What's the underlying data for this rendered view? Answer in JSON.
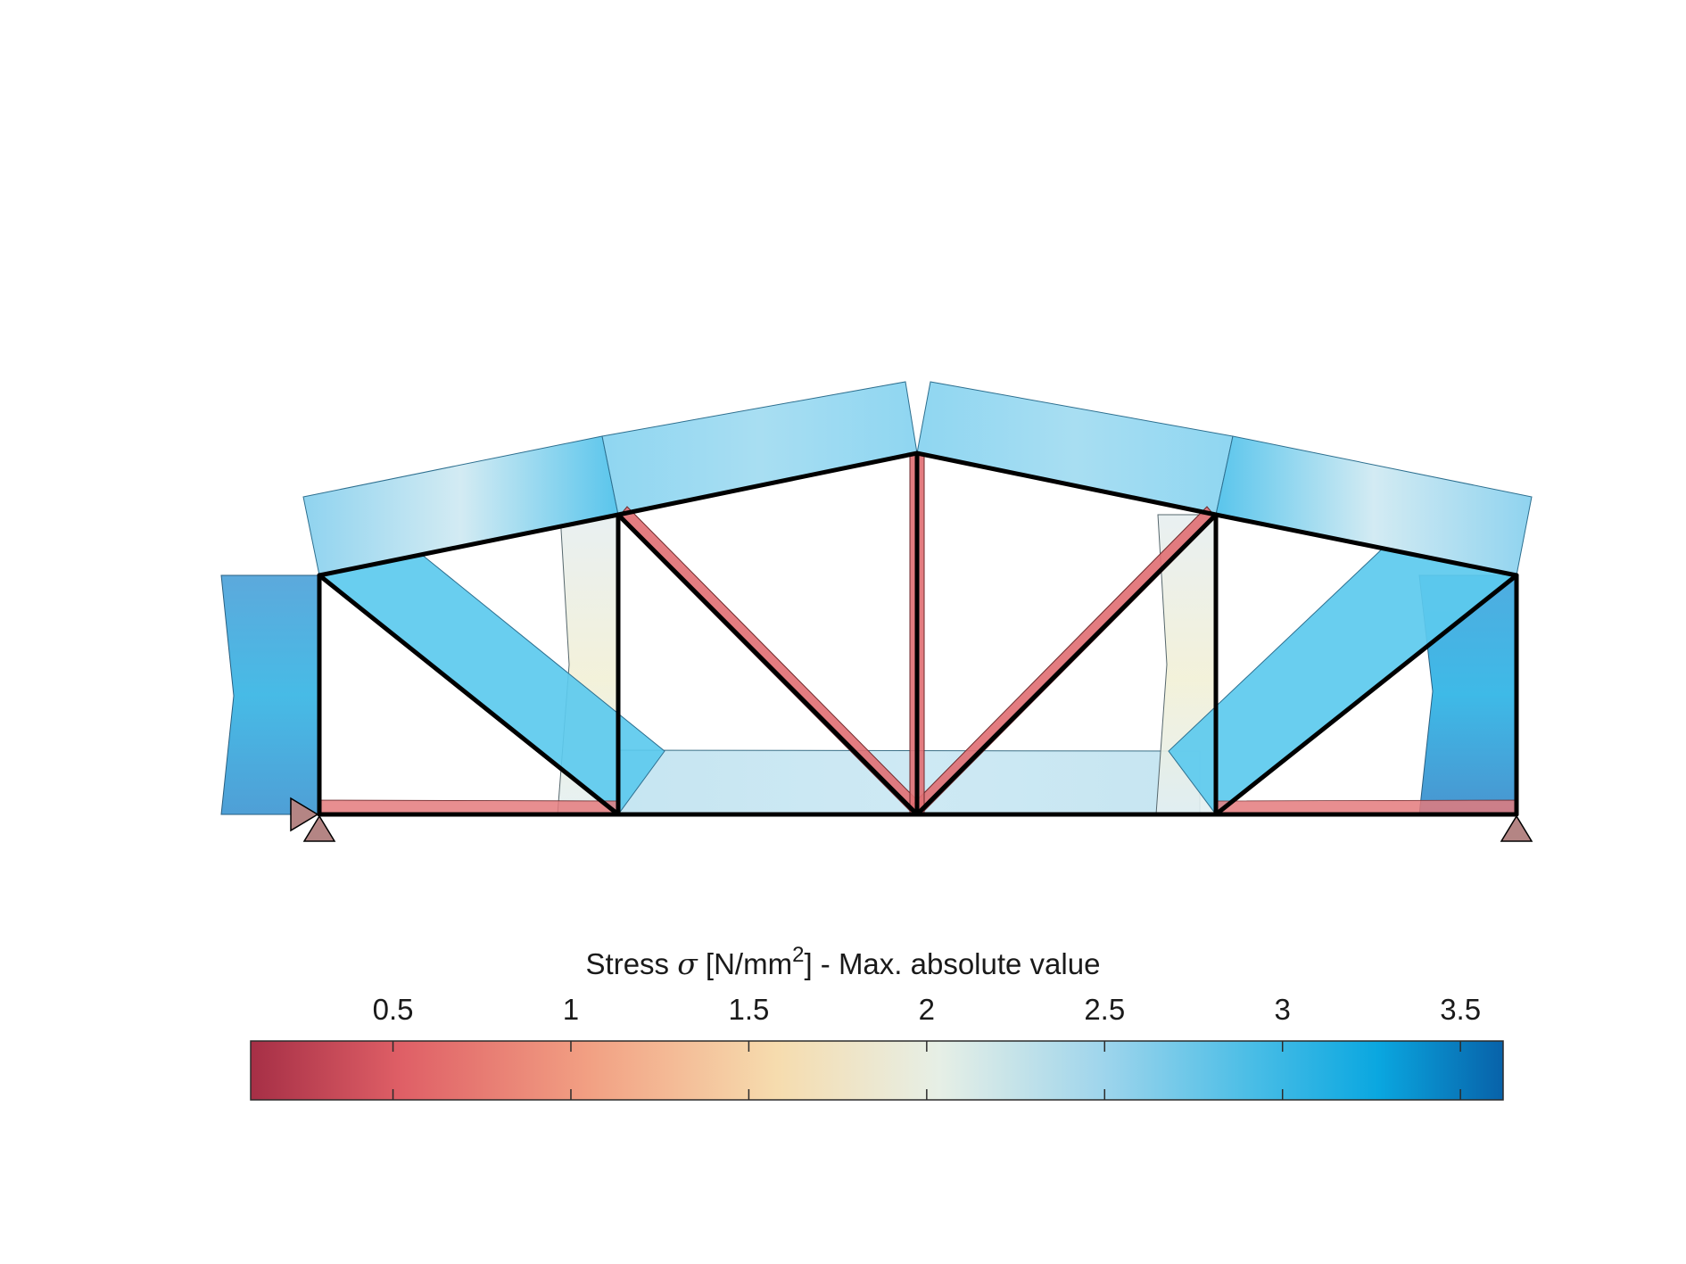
{
  "colorbar": {
    "title_main": "Stress ",
    "title_symbol": "σ",
    "title_unit_pre": " [N/mm",
    "title_unit_sup": "2",
    "title_unit_post": "]  -  Max. absolute value",
    "ticks": [
      {
        "label": "0.5",
        "value": 0.5
      },
      {
        "label": "1",
        "value": 1.0
      },
      {
        "label": "1.5",
        "value": 1.5
      },
      {
        "label": "2",
        "value": 2.0
      },
      {
        "label": "2.5",
        "value": 2.5
      },
      {
        "label": "3",
        "value": 3.0
      },
      {
        "label": "3.5",
        "value": 3.5
      }
    ],
    "range": [
      0.1,
      3.62
    ],
    "colormap": [
      "#a62f46",
      "#df5f66",
      "#f2a083",
      "#f6dcae",
      "#e6efe6",
      "#9fd5ec",
      "#49bde6",
      "#0aa7e0",
      "#0862a9"
    ]
  },
  "colors": {
    "member_line": "#000000",
    "support": "#b48584",
    "tension_band": "#e06e72",
    "compression_band": "#4fc0ea",
    "low_band": "#e9efe2"
  }
}
